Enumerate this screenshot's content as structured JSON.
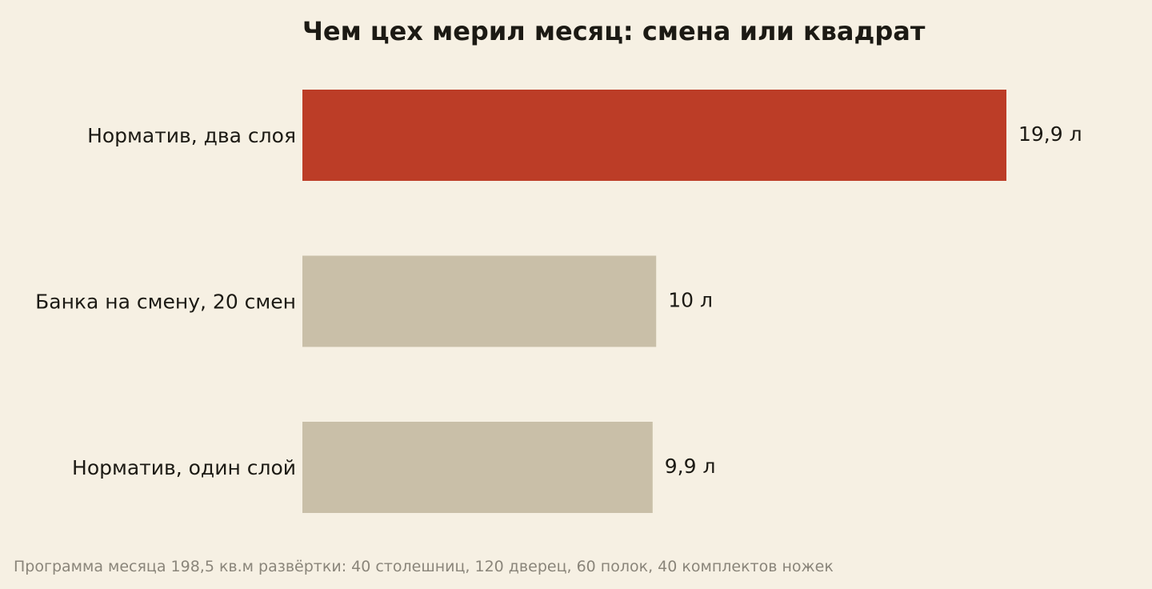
{
  "chart_data": {
    "type": "bar",
    "orientation": "horizontal",
    "title": "Чем цех мерил месяц: смена или квадрат",
    "categories": [
      "Норматив, два слоя",
      "Банка на смену, 20 смен",
      "Норматив, один слой"
    ],
    "values": [
      19.9,
      10,
      9.9
    ],
    "value_labels": [
      "19,9 л",
      "10 л",
      "9,9 л"
    ],
    "unit": "л",
    "xlim": [
      0,
      19.9
    ],
    "grid": false,
    "legend": "none",
    "highlight_index": 0,
    "colors": {
      "highlight": "#bc3d27",
      "default": "#c9bfa8",
      "background": "#f6f0e3",
      "text": "#1c1a14",
      "footnote": "#8a857a"
    },
    "footnote": "Программа месяца 198,5 кв.м развёртки: 40 столешниц, 120 дверец, 60 полок, 40 комплектов ножек"
  }
}
